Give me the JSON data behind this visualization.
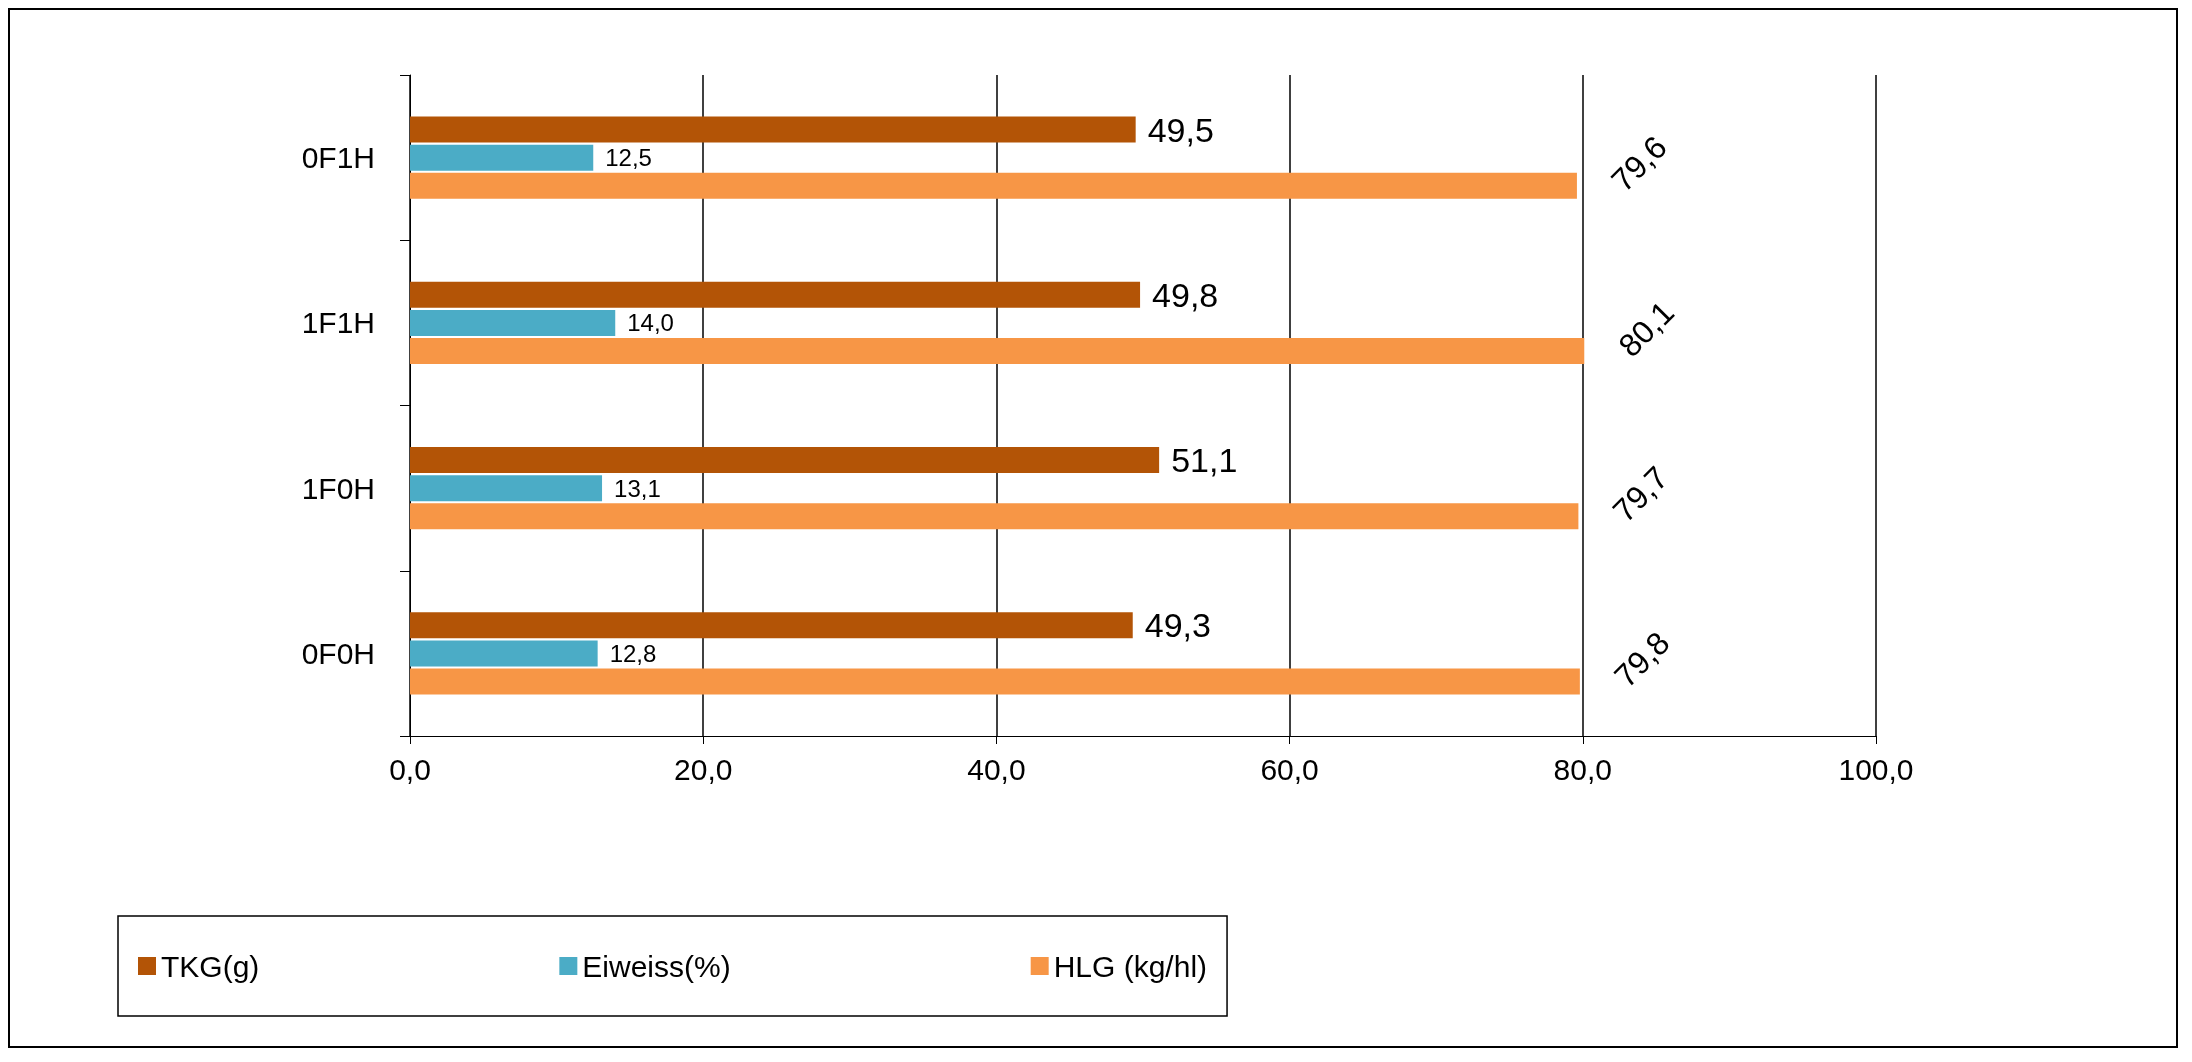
{
  "chart_data": {
    "type": "bar",
    "orientation": "horizontal",
    "categories": [
      "0F1H",
      "1F1H",
      "1F0H",
      "0F0H"
    ],
    "series": [
      {
        "name": "TKG(g)",
        "color": "#b35406",
        "values": [
          49.5,
          49.8,
          51.1,
          49.3
        ],
        "value_labels": [
          "49,5",
          "49,8",
          "51,1",
          "49,3"
        ]
      },
      {
        "name": "Eiweiss(%)",
        "color": "#4bacc6",
        "values": [
          12.5,
          14.0,
          13.1,
          12.8
        ],
        "value_labels": [
          "12,5",
          "14,0",
          "13,1",
          "12,8"
        ]
      },
      {
        "name": "HLG (kg/hl)",
        "color": "#f79646",
        "values": [
          79.6,
          80.1,
          79.7,
          79.8
        ],
        "value_labels": [
          "79,6",
          "80,1",
          "79,7",
          "79,8"
        ]
      }
    ],
    "xlim": [
      0,
      100
    ],
    "xticks": [
      {
        "value": 0,
        "label": "0,0"
      },
      {
        "value": 20,
        "label": "20,0"
      },
      {
        "value": 40,
        "label": "40,0"
      },
      {
        "value": 60,
        "label": "60,0"
      },
      {
        "value": 80,
        "label": "80,0"
      },
      {
        "value": 100,
        "label": "100,0"
      }
    ],
    "grid": "x",
    "legend": "bottom"
  }
}
